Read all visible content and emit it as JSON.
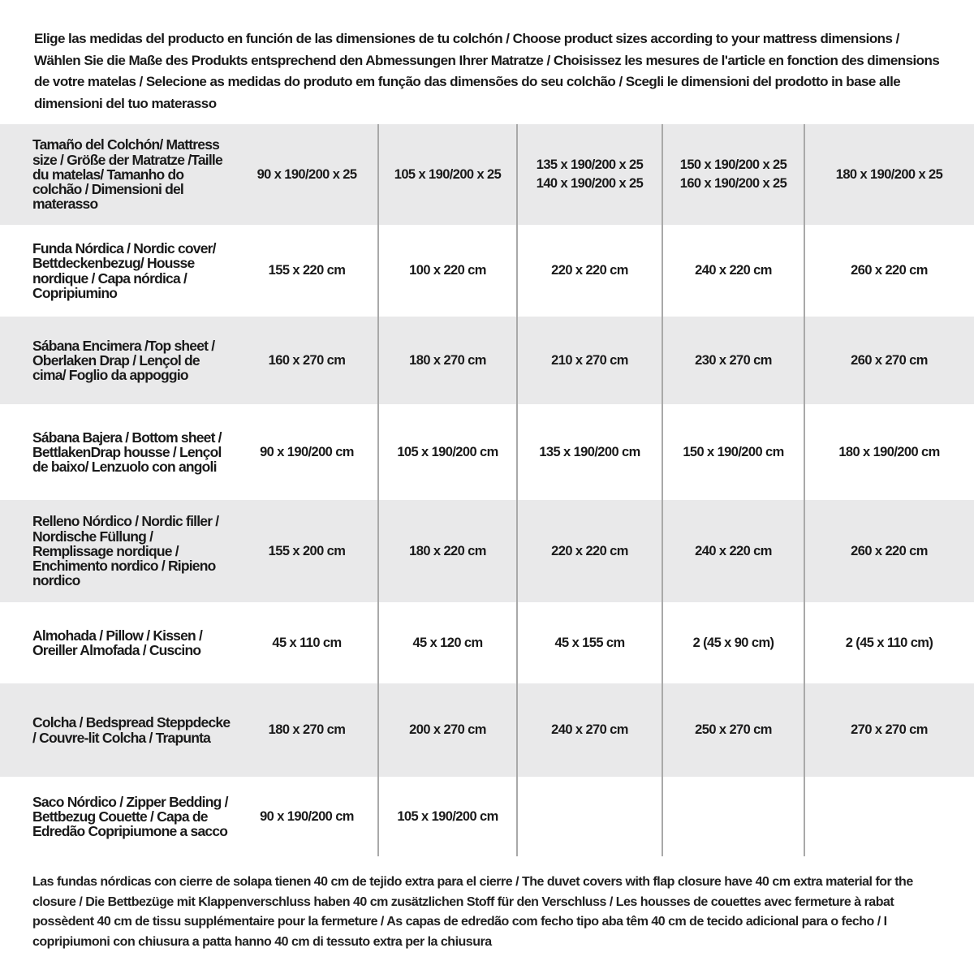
{
  "intro": "Elige las medidas del producto en función de las dimensiones de tu colchón / Choose product sizes according to your mattress dimensions / Wählen Sie die Maße des Produkts entsprechend den Abmessungen Ihrer Matratze / Choisissez les mesures de l'article en fonction des dimensions de votre matelas / Selecione as medidas do produto em função das dimensões do seu colchão / Scegli le dimensioni del prodotto in base alle dimensioni del tuo materasso",
  "rows": [
    {
      "label": "Tamaño del Colchón/ Mattress size / Größe der Matratze /Taille du matelas/ Tamanho do colchão / Dimensioni del materasso",
      "values": [
        "90 x 190/200 x 25",
        "105 x 190/200 x 25",
        "135 x 190/200 x 25\n140 x 190/200 x 25",
        "150 x 190/200 x 25\n160 x 190/200 x 25",
        "180 x 190/200 x 25"
      ]
    },
    {
      "label": "Funda Nórdica /  Nordic cover/ Bettdeckenbezug/ Housse nordique  / Capa nórdica / Copripiumino",
      "values": [
        "155 x 220 cm",
        "100 x 220 cm",
        "220 x 220 cm",
        "240 x 220 cm",
        "260 x 220 cm"
      ]
    },
    {
      "label": "Sábana Encimera /Top sheet / Oberlaken Drap / Lençol de cima/ Foglio da appoggio",
      "values": [
        "160 x 270 cm",
        "180 x 270 cm",
        "210 x 270 cm",
        "230 x 270 cm",
        "260 x 270 cm"
      ]
    },
    {
      "label": "Sábana Bajera / Bottom sheet / BettlakenDrap housse / Lençol de baixo/ Lenzuolo con angoli",
      "values": [
        "90 x 190/200 cm",
        "105 x 190/200 cm",
        "135 x 190/200 cm",
        "150 x 190/200 cm",
        "180 x 190/200 cm"
      ]
    },
    {
      "label": "Relleno Nórdico / Nordic filler / Nordische Füllung / Remplissage nordique / Enchimento nordico / Ripieno nordico",
      "values": [
        "155 x 200 cm",
        "180 x 220 cm",
        "220 x 220 cm",
        "240 x 220 cm",
        "260 x 220 cm"
      ]
    },
    {
      "label": "Almohada  / Pillow / Kissen / Oreiller Almofada / Cuscino",
      "values": [
        "45 x 110 cm",
        "45 x 120 cm",
        "45 x 155 cm",
        "2 (45 x 90 cm)",
        "2 (45 x 110 cm)"
      ]
    },
    {
      "label": "Colcha / Bedspread Steppdecke / Couvre-lit Colcha / Trapunta",
      "values": [
        "180 x 270 cm",
        "200 x 270 cm",
        "240 x 270 cm",
        "250 x 270 cm",
        "270 x 270 cm"
      ]
    },
    {
      "label": "Saco Nórdico / Zipper Bedding / Bettbezug Couette  / Capa de Edredão Copripiumone a sacco",
      "values": [
        "90 x 190/200 cm",
        "105 x 190/200 cm",
        "",
        "",
        ""
      ]
    }
  ],
  "footer": "Las fundas nórdicas con cierre de solapa tienen 40 cm de tejido extra para el cierre  / The duvet covers with flap closure have 40 cm extra material for the closure / Die Bettbezüge mit Klappenverschluss haben 40 cm zusätzlichen Stoff für den Verschluss / Les housses de couettes avec fermeture à rabat possèdent 40 cm de tissu supplémentaire pour la fermeture / As capas de edredão com fecho tipo aba têm 40 cm de tecido adicional para o fecho / I copripiumoni con chiusura a patta hanno 40 cm di tessuto extra per la chiusura"
}
